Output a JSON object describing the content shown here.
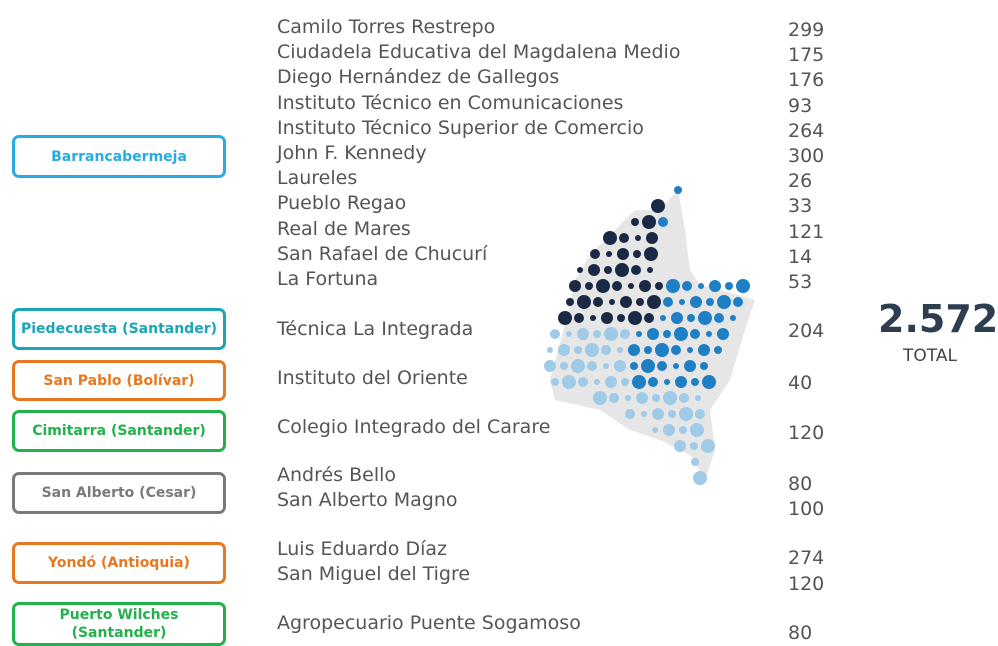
{
  "groups": [
    {
      "label": [
        "Barrancabermeja"
      ],
      "color": "#29abe2",
      "schools": [
        {
          "name": "Camilo Torres Restrepo",
          "count": 299
        },
        {
          "name": "Ciudadela Educativa del Magdalena Medio",
          "count": 175
        },
        {
          "name": "Diego Hernández de Gallegos",
          "count": 176
        },
        {
          "name": "Instituto Técnico en Comunicaciones",
          "count": 93
        },
        {
          "name": "Instituto Técnico Superior de Comercio",
          "count": 264
        },
        {
          "name": "John F. Kennedy",
          "count": 300
        },
        {
          "name": "Laureles",
          "count": 26
        },
        {
          "name": "Pueblo Regao",
          "count": 33
        },
        {
          "name": "Real de Mares",
          "count": 121
        },
        {
          "name": "San Rafael de Chucurí",
          "count": 14
        },
        {
          "name": "La Fortuna",
          "count": 53
        }
      ]
    },
    {
      "label": [
        "Piedecuesta (Santander)"
      ],
      "color": "#1aa6b7",
      "schools": [
        {
          "name": "Técnica La Integrada",
          "count": 204
        }
      ]
    },
    {
      "label": [
        "San Pablo (Bolívar)"
      ],
      "color": "#e87722",
      "schools": [
        {
          "name": "Instituto del Oriente",
          "count": 40
        }
      ]
    },
    {
      "label": [
        "Cimitarra  (Santander)"
      ],
      "color": "#22b14c",
      "schools": [
        {
          "name": "Colegio Integrado del Carare",
          "count": 120
        }
      ]
    },
    {
      "label": [
        "San Alberto (Cesar)"
      ],
      "color": "#7a7a7a",
      "schools": [
        {
          "name": "Andrés Bello",
          "count": 80
        },
        {
          "name": "San Alberto Magno",
          "count": 100
        }
      ]
    },
    {
      "label": [
        "Yondó (Antioquia)"
      ],
      "color": "#e87722",
      "schools": [
        {
          "name": "Luis Eduardo Díaz",
          "count": 274
        },
        {
          "name": "San Miguel del Tigre",
          "count": 120
        }
      ]
    },
    {
      "label": [
        "Puerto Wilches",
        "(Santander)"
      ],
      "color": "#22b14c",
      "schools": [
        {
          "name": "Agropecuario Puente Sogamoso",
          "count": 80
        }
      ]
    }
  ],
  "total": {
    "value": "2.572",
    "label": "TOTAL"
  }
}
